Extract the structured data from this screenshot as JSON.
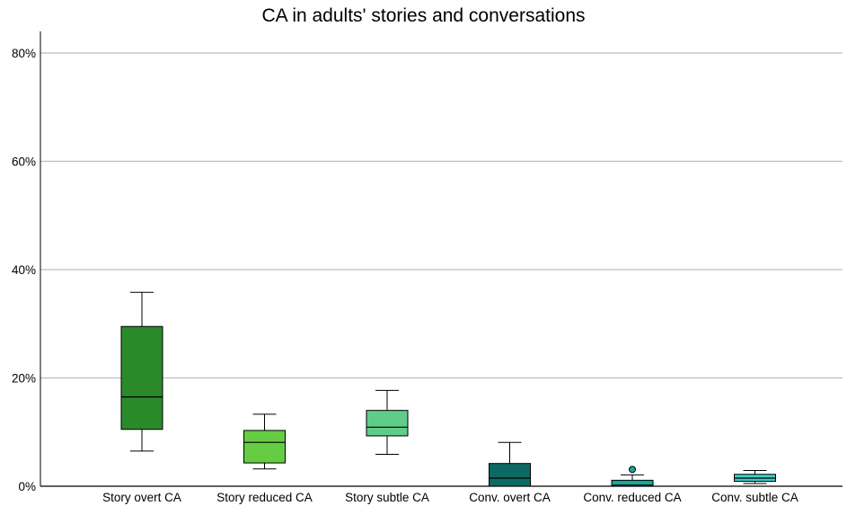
{
  "chart_data": {
    "type": "boxplot",
    "title": "CA in adults' stories and conversations",
    "xlabel": "",
    "ylabel": "",
    "ylim": [
      0,
      84
    ],
    "yticks": [
      0,
      20,
      40,
      60,
      80
    ],
    "ytick_labels": [
      "0%",
      "20%",
      "40%",
      "60%",
      "80%"
    ],
    "grid": true,
    "categories": [
      "Story overt CA",
      "Story reduced CA",
      "Story subtle CA",
      "Conv. overt CA",
      "Conv. reduced CA",
      "Conv. subtle CA"
    ],
    "boxes": [
      {
        "category": "Story overt CA",
        "whisker_low": 6.5,
        "q1": 10.5,
        "median": 16.5,
        "q3": 29.5,
        "whisker_high": 35.8,
        "outliers": [],
        "color": "#2a8a2a"
      },
      {
        "category": "Story reduced CA",
        "whisker_low": 3.2,
        "q1": 4.3,
        "median": 8.1,
        "q3": 10.3,
        "whisker_high": 13.3,
        "outliers": [],
        "color": "#66cc44"
      },
      {
        "category": "Story subtle CA",
        "whisker_low": 5.9,
        "q1": 9.3,
        "median": 10.9,
        "q3": 14.0,
        "whisker_high": 17.7,
        "outliers": [],
        "color": "#5fcc8a"
      },
      {
        "category": "Conv. overt CA",
        "whisker_low": 0.0,
        "q1": 0.0,
        "median": 1.5,
        "q3": 4.2,
        "whisker_high": 8.1,
        "outliers": [],
        "color": "#0b6b64"
      },
      {
        "category": "Conv. reduced CA",
        "whisker_low": 0.0,
        "q1": 0.0,
        "median": 0.2,
        "q3": 1.1,
        "whisker_high": 2.1,
        "outliers": [
          3.1
        ],
        "color": "#14a89a"
      },
      {
        "category": "Conv. subtle CA",
        "whisker_low": 0.5,
        "q1": 0.9,
        "median": 1.5,
        "q3": 2.2,
        "whisker_high": 2.9,
        "outliers": [],
        "color": "#3ccdc6"
      }
    ]
  }
}
